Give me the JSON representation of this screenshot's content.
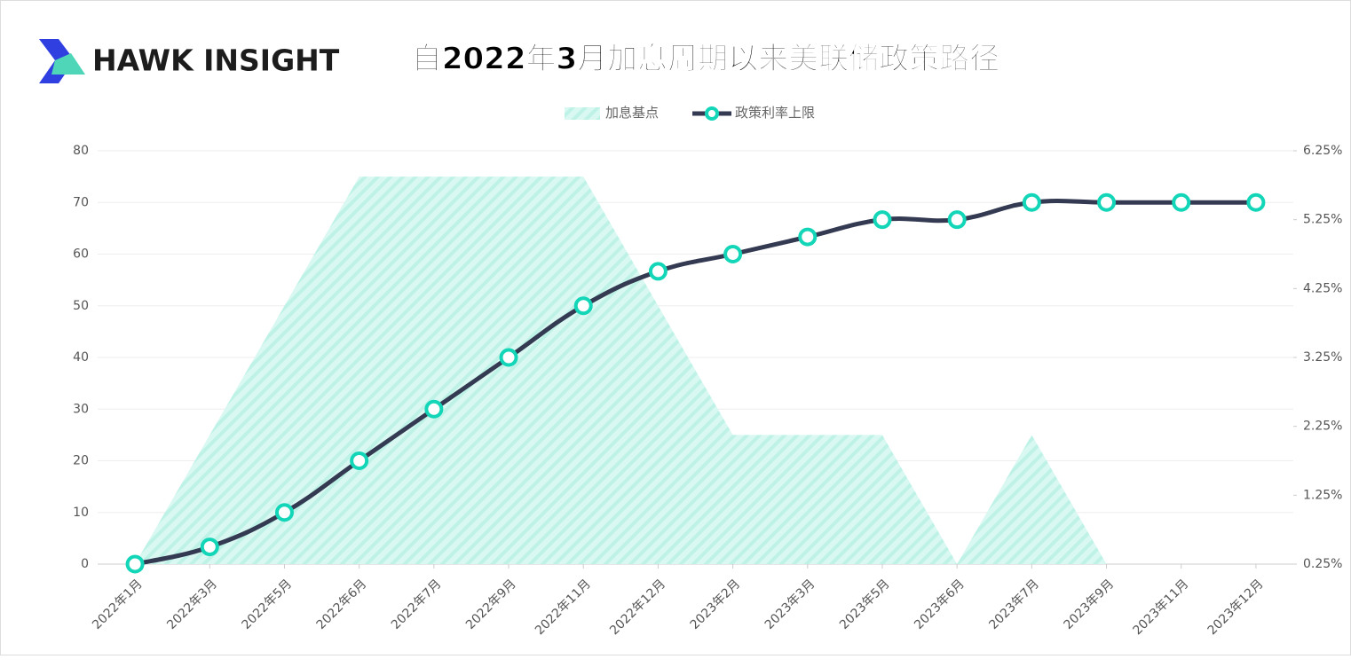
{
  "brand": "HAWK INSIGHT",
  "chart_data": {
    "type": "line",
    "title": "自2022年3月加息周期以来美联储政策路径",
    "categories": [
      "2022年1月",
      "2022年3月",
      "2022年5月",
      "2022年6月",
      "2022年7月",
      "2022年9月",
      "2022年11月",
      "2022年12月",
      "2023年2月",
      "2023年3月",
      "2023年5月",
      "2023年6月",
      "2023年7月",
      "2023年9月",
      "2023年11月",
      "2023年12月"
    ],
    "series": [
      {
        "name": "加息基点",
        "type": "area",
        "color": "#5ee6cf",
        "values": [
          0,
          25,
          50,
          75,
          75,
          75,
          75,
          50,
          25,
          25,
          25,
          0,
          25,
          0,
          0,
          0
        ]
      },
      {
        "name": "政策利率上限",
        "type": "line",
        "axis": "y2",
        "color": "#333a52",
        "marker_color": "#13d6b8",
        "values": [
          0.25,
          0.5,
          1,
          1.75,
          2.5,
          3.25,
          4,
          4.5,
          4.75,
          5,
          5.25,
          5.25,
          5.5,
          5.5,
          5.5,
          5.5
        ]
      }
    ],
    "ylim": [
      0,
      80
    ],
    "yticks": [
      0,
      10,
      20,
      30,
      40,
      50,
      60,
      70,
      80
    ],
    "y2lim": [
      0.25,
      6.25
    ],
    "y2ticks": [
      {
        "value": 0.25,
        "label": "0.25%"
      },
      {
        "value": 1.25,
        "label": "1.25%"
      },
      {
        "value": 2.25,
        "label": "2.25%"
      },
      {
        "value": 3.25,
        "label": "3.25%"
      },
      {
        "value": 4.25,
        "label": "4.25%"
      },
      {
        "value": 5.25,
        "label": "5.25%"
      },
      {
        "value": 6.25,
        "label": "6.25%"
      }
    ],
    "grid": true,
    "legend": "top"
  }
}
